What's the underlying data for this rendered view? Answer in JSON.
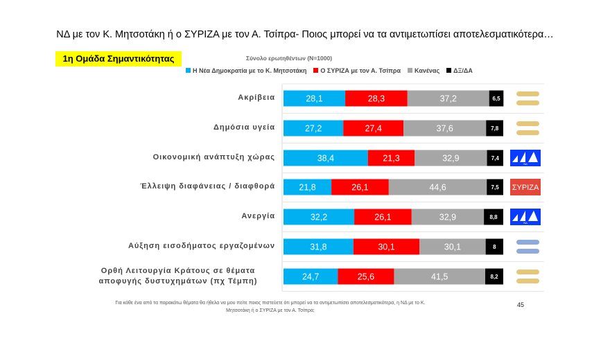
{
  "title": "ΝΔ με τον Κ. Μητσοτάκη ή ο ΣΥΡΙΖΑ με τον Α. Τσίπρα- Ποιος μπορεί να τα αντιμετωπίσει αποτελεσματικότερα…",
  "group_label": "1η Ομάδα Σημαντικότητας",
  "sample": "Σύνολο ερωτηθέντων (Ν=1000)",
  "footnote": "Για κάθε ένα από τα παρακάτω θέματα θα ήθελα να μου πείτε ποιος πιστεύετε ότι μπορεί να τα αντιμετωπίσει αποτελεσματικότερα, η ΝΔ με το Κ. Μητσοτάκη ή ο ΣΥΡΙΖΑ με τον Α. Τσίπρα;",
  "page_number": "45",
  "chart_data": {
    "type": "bar",
    "stacked": true,
    "orientation": "horizontal",
    "xlim": [
      0,
      100
    ],
    "legend": "top",
    "categories": [
      "Ακρίβεια",
      "Δημόσια υγεία",
      "Οικονομική ανάπτυξη χώρας",
      "Έλλειψη διαφάνειας / διαφθορά",
      "Ανεργία",
      "Αύξηση εισοδήματος εργαζομένων",
      "Ορθή Λειτουργία Κράτους σε θέματα αποφυγής δυστυχημάτων (πχ Τέμπη)"
    ],
    "series": [
      {
        "name": "Η Νέα Δημοκρατία με το Κ. Μητσοτάκη",
        "color": "#00b0f0",
        "values": [
          28.1,
          27.2,
          38.4,
          21.8,
          32.2,
          31.8,
          24.7
        ],
        "labels": [
          "28,1",
          "27,2",
          "38,4",
          "21,8",
          "32,2",
          "31,8",
          "24,7"
        ]
      },
      {
        "name": "Ο ΣΥΡΙΖΑ με τον Α. Τσίπρα",
        "color": "#ff0000",
        "values": [
          28.3,
          27.4,
          21.3,
          26.1,
          26.1,
          30.1,
          25.6
        ],
        "labels": [
          "28,3",
          "27,4",
          "21,3",
          "26,1",
          "26,1",
          "30,1",
          "25,6"
        ]
      },
      {
        "name": "Κανένας",
        "color": "#a6a6a6",
        "values": [
          37.2,
          37.6,
          32.9,
          44.6,
          32.9,
          30.1,
          41.5
        ],
        "labels": [
          "37,2",
          "37,6",
          "32,9",
          "44,6",
          "32,9",
          "30,1",
          "41,5"
        ]
      },
      {
        "name": "ΔΞ/ΔΑ",
        "color": "#000000",
        "values": [
          6.5,
          7.8,
          7.4,
          7.5,
          8.8,
          8,
          8.2
        ],
        "labels": [
          "6,5",
          "7,8",
          "7,4",
          "7,5",
          "8,8",
          "8",
          "8,2"
        ]
      }
    ],
    "winner_icons": [
      "tie-icon",
      "tie-icon",
      "nd-logo",
      "syriza-logo",
      "nd-logo",
      "tie-icon",
      "tie-icon"
    ],
    "winner_logo_text": {
      "nd": "ΝΔ",
      "syriza": "ΣΥΡΙΖΑ"
    }
  }
}
